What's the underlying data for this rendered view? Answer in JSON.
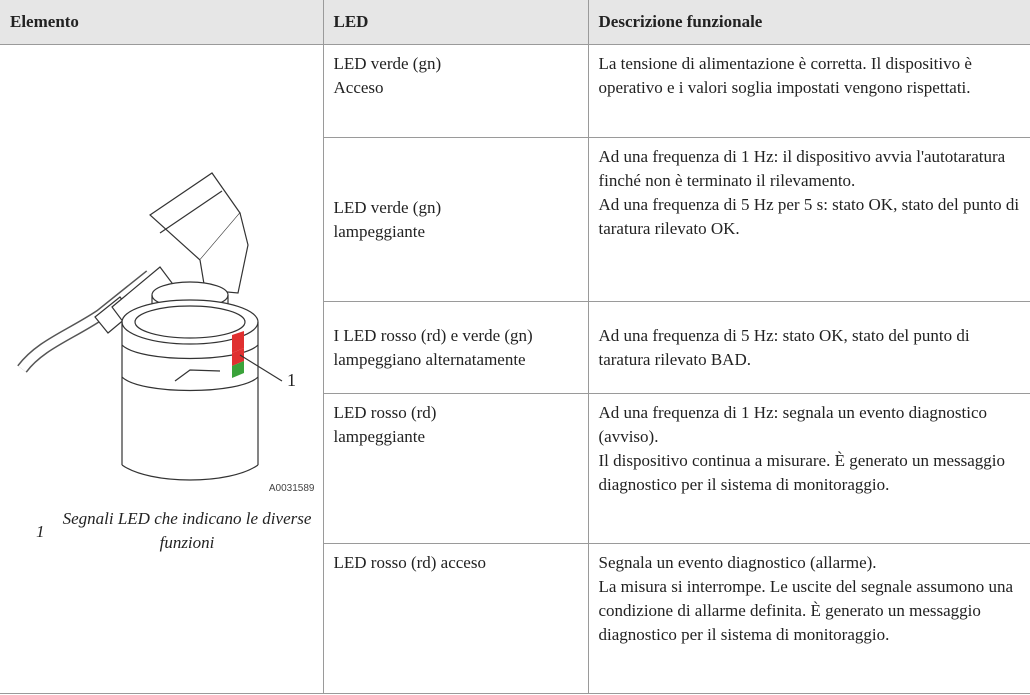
{
  "table": {
    "header": [
      "Elemento",
      "LED",
      "Descrizione funzionale"
    ],
    "figure": {
      "callout": "1",
      "code": "A0031589",
      "caption_number": "1",
      "caption": "Segnali LED che indicano le diverse funzioni"
    },
    "rows": [
      {
        "led": [
          "LED verde (gn)",
          "Acceso"
        ],
        "description": [
          "La tensione di alimentazione è corretta. Il dispositivo è operativo e i valori soglia impostati vengono rispettati."
        ]
      },
      {
        "led": [
          "LED verde (gn)",
          "lampeggiante"
        ],
        "description": [
          "Ad una frequenza di 1 Hz: il dispositivo avvia l'autotaratura finché non è terminato il rilevamento.",
          "Ad una frequenza di 5 Hz per 5 s: stato OK, stato del punto di taratura rilevato OK."
        ]
      },
      {
        "led": [
          "I LED rosso (rd) e verde (gn) lampeggiano alternatamente"
        ],
        "description": [
          "Ad una frequenza di 5 Hz: stato OK, stato del punto di taratura rilevato BAD."
        ]
      },
      {
        "led": [
          "LED rosso (rd)",
          "lampeggiante"
        ],
        "description": [
          "Ad una frequenza di 1 Hz: segnala un evento diagnostico (avviso).",
          "Il dispositivo continua a misurare. È generato un messaggio diagnostico per il sistema di monitoraggio."
        ]
      },
      {
        "led": [
          "LED rosso (rd) acceso"
        ],
        "description": [
          "Segnala un evento diagnostico (allarme).",
          "La misura si interrompe. Le uscite del segnale assumono una condizione di allarme definita. È generato un messaggio diagnostico per il sistema di monitoraggio."
        ]
      }
    ]
  }
}
